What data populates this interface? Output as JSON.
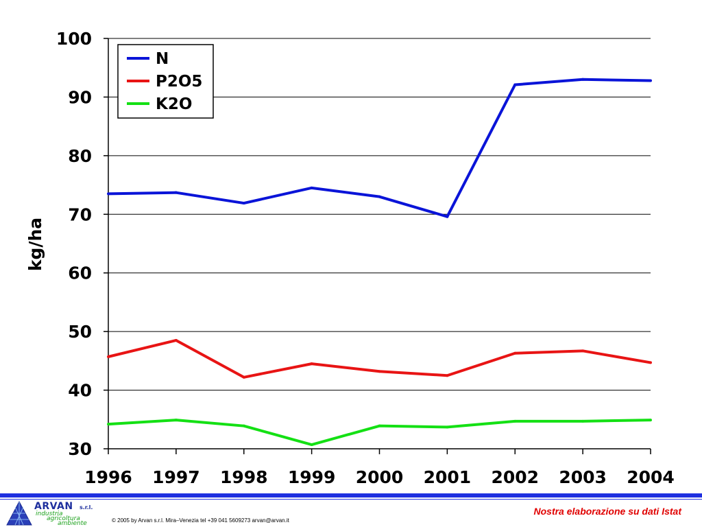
{
  "chart_data": {
    "type": "line",
    "title": "",
    "xlabel": "",
    "ylabel": "kg/ha",
    "x": [
      "1996",
      "1997",
      "1998",
      "1999",
      "2000",
      "2001",
      "2002",
      "2003",
      "2004"
    ],
    "ylim": [
      30,
      100
    ],
    "yticks": [
      30,
      40,
      50,
      60,
      70,
      80,
      90,
      100
    ],
    "grid": true,
    "legend_position": "top-left",
    "series": [
      {
        "name": "N",
        "color": "#0a14d8",
        "values": [
          73.5,
          73.7,
          71.9,
          74.5,
          73.0,
          69.6,
          92.1,
          93.0,
          92.8
        ]
      },
      {
        "name": "P2O5",
        "color": "#e81414",
        "values": [
          45.7,
          48.5,
          42.2,
          44.5,
          43.2,
          42.5,
          46.3,
          46.7,
          44.7
        ]
      },
      {
        "name": "K2O",
        "color": "#14e014",
        "values": [
          34.2,
          34.9,
          33.9,
          30.7,
          33.9,
          33.7,
          34.7,
          34.7,
          34.9
        ]
      }
    ]
  },
  "footer": {
    "logo_name": "ARVAN",
    "logo_srl": "s.r.l.",
    "logo_line1": "industria",
    "logo_line2": "agricoltura",
    "logo_line3": "ambiente",
    "copyright": "© 2005 by Arvan s.r.l. Mira–Venezia tel +39 041 5609273 arvan@arvan.it",
    "source_note": "Nostra elaborazione su dati Istat",
    "accent_color": "#1e2fe0",
    "note_color": "#e00000"
  }
}
